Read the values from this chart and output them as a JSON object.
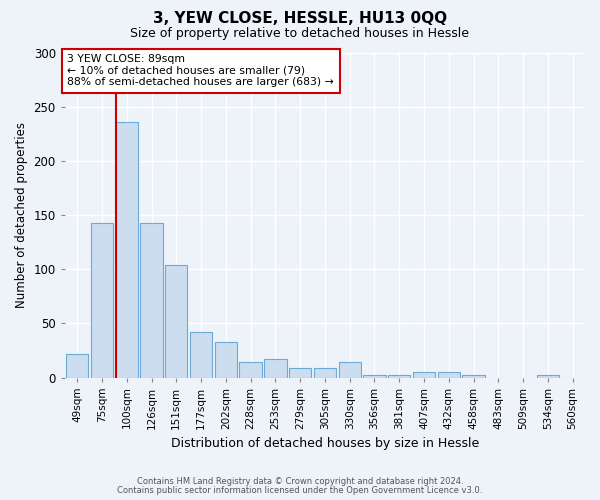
{
  "title": "3, YEW CLOSE, HESSLE, HU13 0QQ",
  "subtitle": "Size of property relative to detached houses in Hessle",
  "xlabel": "Distribution of detached houses by size in Hessle",
  "ylabel": "Number of detached properties",
  "bar_color": "#ccddf0",
  "bar_edge_color": "#6aaad4",
  "background_color": "#eef2f9",
  "grid_color": "#ffffff",
  "categories": [
    "49sqm",
    "75sqm",
    "100sqm",
    "126sqm",
    "151sqm",
    "177sqm",
    "202sqm",
    "228sqm",
    "253sqm",
    "279sqm",
    "305sqm",
    "330sqm",
    "356sqm",
    "381sqm",
    "407sqm",
    "432sqm",
    "458sqm",
    "483sqm",
    "509sqm",
    "534sqm",
    "560sqm"
  ],
  "values": [
    22,
    143,
    236,
    143,
    104,
    42,
    33,
    14,
    17,
    9,
    9,
    14,
    2,
    2,
    5,
    5,
    2,
    0,
    0,
    2,
    0
  ],
  "ylim": [
    0,
    300
  ],
  "yticks": [
    0,
    50,
    100,
    150,
    200,
    250,
    300
  ],
  "red_line_x": 1.57,
  "annotation_title": "3 YEW CLOSE: 89sqm",
  "annotation_line1": "← 10% of detached houses are smaller (79)",
  "annotation_line2": "88% of semi-detached houses are larger (683) →",
  "annotation_box_color": "#ffffff",
  "annotation_box_edge": "#cc0000",
  "footer_line1": "Contains HM Land Registry data © Crown copyright and database right 2024.",
  "footer_line2": "Contains public sector information licensed under the Open Government Licence v3.0."
}
